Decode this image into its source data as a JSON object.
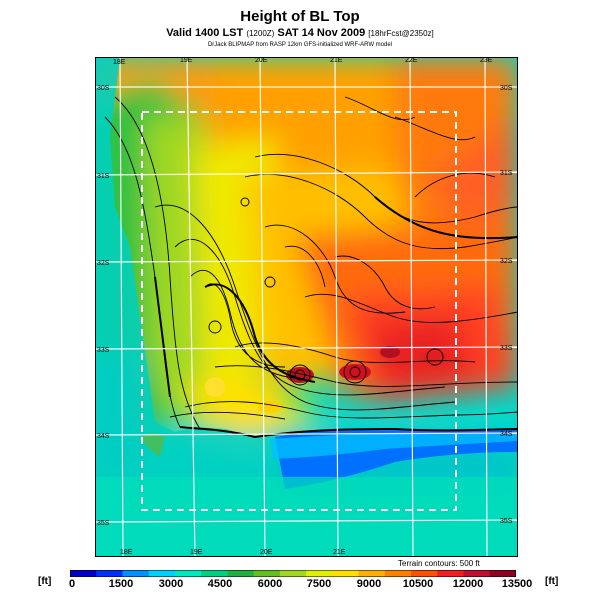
{
  "header": {
    "title": "Height of BL Top",
    "subtitle_main": "Valid 1400 LST",
    "subtitle_code": "(1200Z)",
    "subtitle_date": "SAT 14 Nov 2009",
    "subtitle_tag": "[18hrFcst@2350z]",
    "credit": "DrJack BLIPMAP from RASP 12km GFS-initialized WRF-ARW model"
  },
  "map": {
    "top_lon_labels": [
      "18E",
      "19E",
      "20E",
      "21E",
      "22E",
      "23E"
    ],
    "bottom_lon_labels": [
      "18E",
      "19E",
      "20E",
      "21E"
    ],
    "left_lat_labels": [
      "30S",
      "31S",
      "32S",
      "33S",
      "34S",
      "35S"
    ],
    "right_lat_labels": [
      "30S",
      "31S",
      "32S",
      "33S",
      "34S",
      "35S"
    ],
    "terrain_note": "Terrain contours: 500 ft"
  },
  "colorbar": {
    "unit_left": "[ft]",
    "unit_right": "[ft]",
    "tick_labels": [
      "0",
      "1500",
      "3000",
      "4500",
      "6000",
      "7500",
      "9000",
      "10500",
      "12000",
      "13500"
    ],
    "colors": [
      "#0000c8",
      "#0030ff",
      "#0090ff",
      "#00d0ff",
      "#00e8c0",
      "#00d080",
      "#20b040",
      "#60c020",
      "#a0d820",
      "#e0f000",
      "#ffe000",
      "#ffb000",
      "#ff8000",
      "#ff5000",
      "#f02020",
      "#c01030",
      "#900020"
    ]
  }
}
